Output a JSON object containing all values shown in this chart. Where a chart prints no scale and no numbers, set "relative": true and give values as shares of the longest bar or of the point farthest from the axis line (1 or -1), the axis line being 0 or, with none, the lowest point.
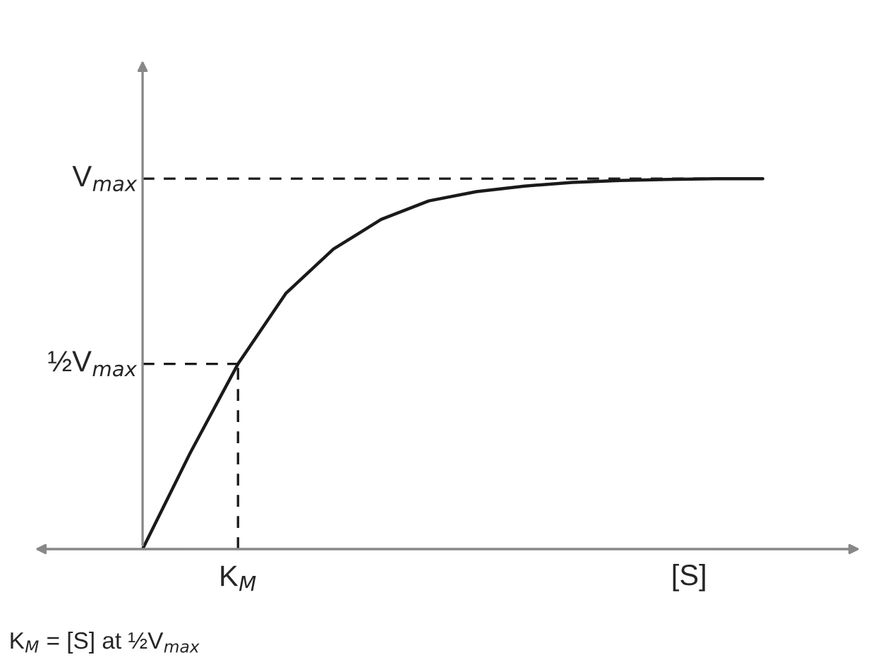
{
  "chart_data": {
    "type": "line",
    "relative": true,
    "xlabel": "[S]",
    "categories": [
      null,
      null,
      null,
      null,
      null,
      null,
      null,
      null,
      null,
      null,
      null,
      null,
      null,
      null
    ],
    "series": [
      {
        "color": "#1a1a1a",
        "values": [
          0,
          0.26,
          0.5,
          0.69,
          0.81,
          0.89,
          0.94,
          0.965,
          0.98,
          0.99,
          0.995,
          0.998,
          1,
          1
        ]
      }
    ],
    "ref_lines": [
      {
        "axis": "y",
        "value": 1,
        "label": "V$_{max}$",
        "line_style": "dashed",
        "color": "#1a1a1a"
      },
      {
        "axis": "y",
        "value": 0.5,
        "label": "½V$_{max}$",
        "line_style": "dashed",
        "color": "#1a1a1a"
      }
    ],
    "annotations": [
      "K$_{M}$",
      "K$_{M}$ = [S] at ½V$_{max}$"
    ],
    "grid": false,
    "legend": false,
    "marker": "none",
    "line_style": "solid"
  }
}
